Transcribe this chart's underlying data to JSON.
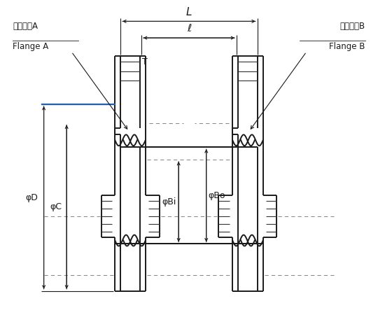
{
  "bg_color": "#ffffff",
  "line_color": "#1a1a1a",
  "blue_color": "#2060b0",
  "labels": {
    "flange_a_jp": "フランジA",
    "flange_a_en": "Flange A",
    "flange_b_jp": "フランジB",
    "flange_b_en": "Flange B",
    "L": "L",
    "ell": "ℓ",
    "T": "T",
    "phi_D": "φD",
    "phi_C": "φC",
    "phi_Bi": "φBi",
    "phi_Bo": "φBo"
  }
}
